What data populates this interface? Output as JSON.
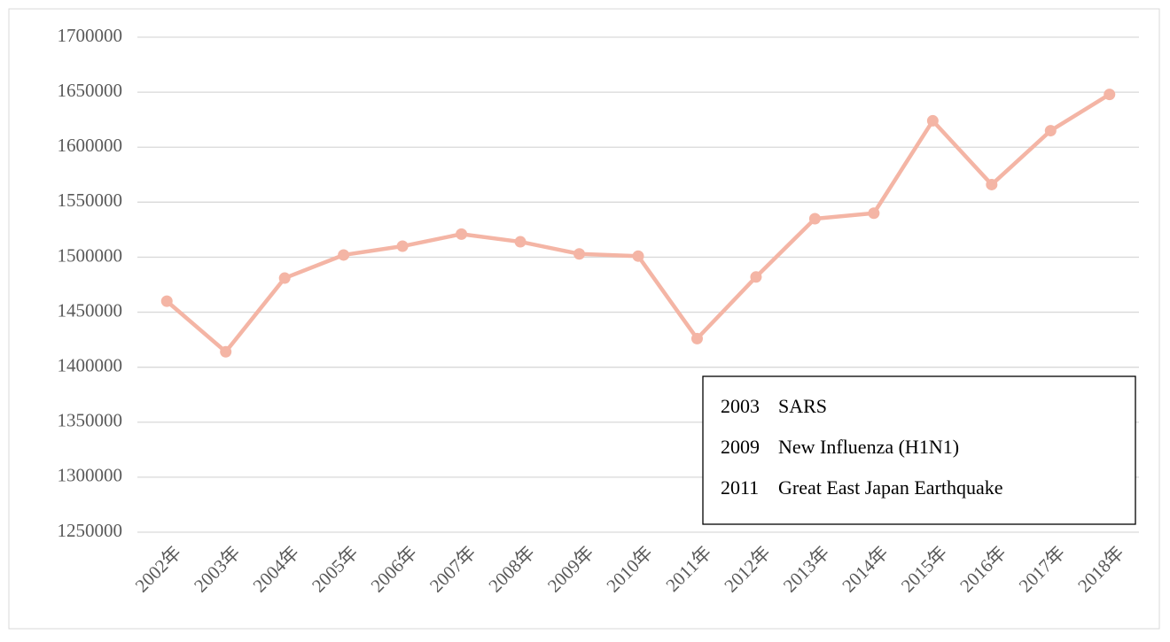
{
  "chart_data": {
    "type": "line",
    "categories": [
      "2002年",
      "2003年",
      "2004年",
      "2005年",
      "2006年",
      "2007年",
      "2008年",
      "2009年",
      "2010年",
      "2011年",
      "2012年",
      "2013年",
      "2014年",
      "2015年",
      "2016年",
      "2017年",
      "2018年"
    ],
    "series": [
      {
        "color": "#f4b5a5",
        "values": [
          1460000,
          1414000,
          1481000,
          1502000,
          1510000,
          1521000,
          1514000,
          1503000,
          1501000,
          1426000,
          1482000,
          1535000,
          1540000,
          1624000,
          1566000,
          1615000,
          1648000
        ]
      }
    ],
    "ylim": [
      1250000,
      1700000
    ],
    "yticks": [
      1250000,
      1300000,
      1350000,
      1400000,
      1450000,
      1500000,
      1550000,
      1600000,
      1650000,
      1700000
    ],
    "grid": true,
    "annotations": [
      {
        "year": "2003",
        "text": "SARS"
      },
      {
        "year": "2009",
        "text": "New Influenza (H1N1)"
      },
      {
        "year": "2011",
        "text": "Great East Japan Earthquake"
      }
    ]
  }
}
